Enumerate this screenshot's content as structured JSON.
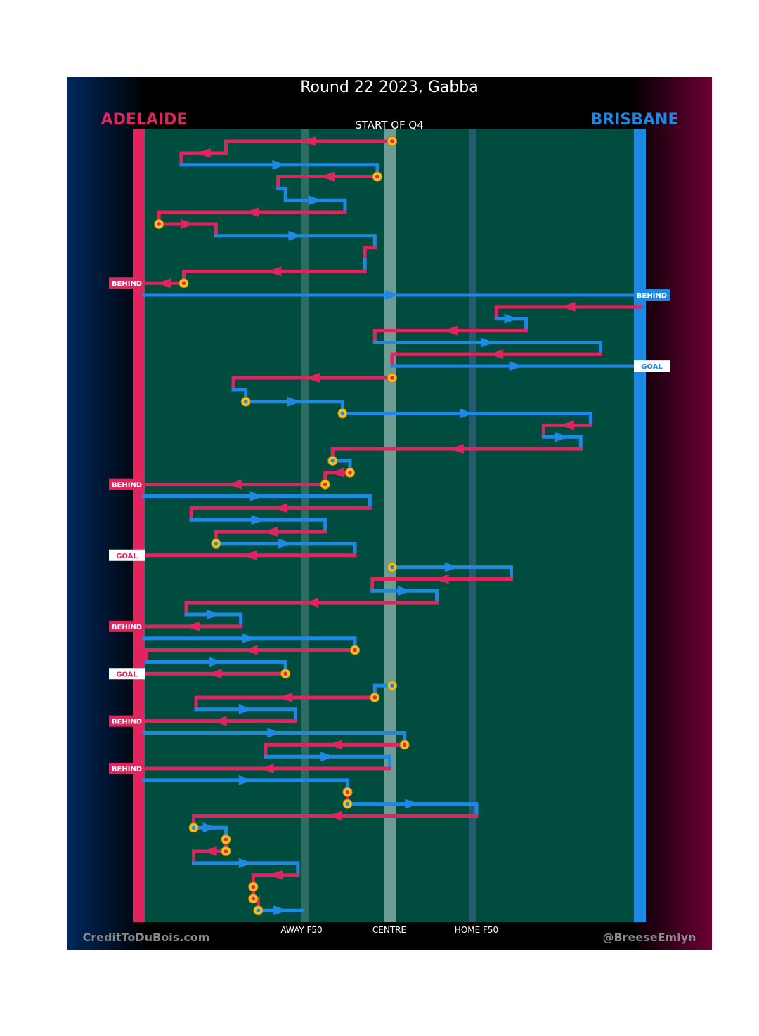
{
  "title": "Round 22 2023, Gabba",
  "subtitle": "START OF Q4",
  "teams": {
    "away": {
      "name": "ADELAIDE",
      "color": "#e0245e"
    },
    "home": {
      "name": "BRISBANE",
      "color": "#1e88e5"
    }
  },
  "zone_labels": {
    "away_f50": "AWAY F50",
    "centre": "CENTRE",
    "home_f50": "HOME F50"
  },
  "footer": {
    "left": "CreditToDuBois.com",
    "right": "@BreeseEmlyn"
  },
  "colors": {
    "pitch": "#004d40",
    "frame": "#000000",
    "marker_fill": "#f4c21b"
  },
  "chart_data": {
    "type": "flow",
    "x_range": [
      0,
      100
    ],
    "x_ticks": [
      {
        "x": 32,
        "label": "AWAY F50"
      },
      {
        "x": 50,
        "label": "CENTRE"
      },
      {
        "x": 68,
        "label": "HOME F50"
      }
    ],
    "chains": [
      {
        "team": "away",
        "points": [
          [
            50,
            0
          ],
          [
            16.5,
            0
          ],
          [
            16.5,
            1
          ]
        ],
        "start_marker": true
      },
      {
        "team": "away",
        "points": [
          [
            16.5,
            1
          ],
          [
            7.5,
            1
          ],
          [
            7.5,
            2
          ]
        ]
      },
      {
        "team": "home",
        "points": [
          [
            7.5,
            2
          ],
          [
            47,
            2
          ],
          [
            47,
            3
          ]
        ]
      },
      {
        "team": "away",
        "points": [
          [
            47,
            3
          ],
          [
            27,
            3
          ],
          [
            27,
            4
          ]
        ],
        "start_marker": true
      },
      {
        "team": "home",
        "points": [
          [
            27,
            4
          ],
          [
            28.5,
            4
          ],
          [
            28.5,
            5
          ]
        ]
      },
      {
        "team": "home",
        "points": [
          [
            28.5,
            5
          ],
          [
            40.5,
            5
          ],
          [
            40.5,
            6
          ]
        ]
      },
      {
        "team": "away",
        "points": [
          [
            40.5,
            6
          ],
          [
            3,
            6
          ],
          [
            3,
            7
          ]
        ]
      },
      {
        "team": "away",
        "points": [
          [
            3,
            7
          ],
          [
            14.5,
            7
          ],
          [
            14.5,
            8
          ]
        ],
        "start_marker": true
      },
      {
        "team": "home",
        "points": [
          [
            14.5,
            8
          ],
          [
            46.5,
            8
          ],
          [
            46.5,
            9
          ]
        ]
      },
      {
        "team": "away",
        "points": [
          [
            46.5,
            9
          ],
          [
            44.5,
            9
          ],
          [
            44.5,
            10
          ]
        ]
      },
      {
        "team": "home",
        "points": [
          [
            44.5,
            10
          ],
          [
            44.5,
            11
          ]
        ]
      },
      {
        "team": "away",
        "points": [
          [
            44.5,
            11
          ],
          [
            8,
            11
          ],
          [
            8,
            12
          ]
        ]
      },
      {
        "team": "away",
        "points": [
          [
            8,
            12
          ],
          [
            0,
            12
          ]
        ],
        "start_marker": true,
        "result": "BEHIND"
      },
      {
        "team": "home",
        "points": [
          [
            0,
            13
          ],
          [
            100,
            13
          ]
        ],
        "result": "BEHIND"
      },
      {
        "team": "away",
        "points": [
          [
            100,
            14
          ],
          [
            71,
            14
          ],
          [
            71,
            15
          ]
        ]
      },
      {
        "team": "home",
        "points": [
          [
            71,
            15
          ],
          [
            77,
            15
          ],
          [
            77,
            16
          ]
        ]
      },
      {
        "team": "away",
        "points": [
          [
            77,
            16
          ],
          [
            46.5,
            16
          ],
          [
            46.5,
            17
          ]
        ]
      },
      {
        "team": "home",
        "points": [
          [
            46.5,
            17
          ],
          [
            92,
            17
          ],
          [
            92,
            18
          ]
        ]
      },
      {
        "team": "away",
        "points": [
          [
            92,
            18
          ],
          [
            50,
            18
          ],
          [
            50,
            19
          ]
        ]
      },
      {
        "team": "home",
        "points": [
          [
            50,
            19
          ],
          [
            100,
            19
          ]
        ],
        "result": "GOAL"
      },
      {
        "team": "away",
        "points": [
          [
            50,
            20
          ],
          [
            18,
            20
          ],
          [
            18,
            21
          ]
        ],
        "start_marker": true
      },
      {
        "team": "home",
        "points": [
          [
            18,
            21
          ],
          [
            20.5,
            21
          ],
          [
            20.5,
            22
          ]
        ]
      },
      {
        "team": "home",
        "points": [
          [
            20.5,
            22
          ],
          [
            40,
            22
          ],
          [
            40,
            23
          ]
        ],
        "start_marker": true
      },
      {
        "team": "home",
        "points": [
          [
            40,
            23
          ],
          [
            90,
            23
          ],
          [
            90,
            24
          ]
        ],
        "start_marker": true
      },
      {
        "team": "away",
        "points": [
          [
            90,
            24
          ],
          [
            80.5,
            24
          ],
          [
            80.5,
            25
          ]
        ]
      },
      {
        "team": "home",
        "points": [
          [
            80.5,
            25
          ],
          [
            88,
            25
          ],
          [
            88,
            26
          ]
        ]
      },
      {
        "team": "away",
        "points": [
          [
            88,
            26
          ],
          [
            38,
            26
          ],
          [
            38,
            27
          ]
        ]
      },
      {
        "team": "home",
        "points": [
          [
            38,
            27
          ],
          [
            41.5,
            27
          ],
          [
            41.5,
            28
          ]
        ],
        "start_marker": true
      },
      {
        "team": "away",
        "points": [
          [
            41.5,
            28
          ],
          [
            36.5,
            28
          ],
          [
            36.5,
            29
          ]
        ],
        "start_marker": true
      },
      {
        "team": "away",
        "points": [
          [
            36.5,
            29
          ],
          [
            0,
            29
          ]
        ],
        "start_marker": true,
        "result": "BEHIND"
      },
      {
        "team": "home",
        "points": [
          [
            0,
            30
          ],
          [
            45.5,
            30
          ],
          [
            45.5,
            31
          ]
        ]
      },
      {
        "team": "away",
        "points": [
          [
            45.5,
            31
          ],
          [
            9.5,
            31
          ],
          [
            9.5,
            32
          ]
        ]
      },
      {
        "team": "home",
        "points": [
          [
            9.5,
            32
          ],
          [
            36.5,
            32
          ],
          [
            36.5,
            33
          ]
        ]
      },
      {
        "team": "away",
        "points": [
          [
            36.5,
            33
          ],
          [
            14.5,
            33
          ],
          [
            14.5,
            34
          ]
        ]
      },
      {
        "team": "home",
        "points": [
          [
            14.5,
            34
          ],
          [
            42.5,
            34
          ],
          [
            42.5,
            35
          ]
        ],
        "start_marker": true
      },
      {
        "team": "away",
        "points": [
          [
            42.5,
            35
          ],
          [
            0,
            35
          ]
        ],
        "result": "GOAL"
      },
      {
        "team": "home",
        "points": [
          [
            50,
            36
          ],
          [
            74,
            36
          ],
          [
            74,
            37
          ]
        ],
        "start_marker": true
      },
      {
        "team": "away",
        "points": [
          [
            74,
            37
          ],
          [
            46,
            37
          ],
          [
            46,
            38
          ]
        ]
      },
      {
        "team": "home",
        "points": [
          [
            46,
            38
          ],
          [
            59,
            38
          ],
          [
            59,
            39
          ]
        ]
      },
      {
        "team": "away",
        "points": [
          [
            59,
            39
          ],
          [
            8.5,
            39
          ],
          [
            8.5,
            40
          ]
        ]
      },
      {
        "team": "home",
        "points": [
          [
            8.5,
            40
          ],
          [
            19.5,
            40
          ],
          [
            19.5,
            41
          ]
        ]
      },
      {
        "team": "away",
        "points": [
          [
            19.5,
            41
          ],
          [
            0,
            41
          ]
        ],
        "result": "BEHIND"
      },
      {
        "team": "home",
        "points": [
          [
            0,
            42
          ],
          [
            42.5,
            42
          ],
          [
            42.5,
            43
          ]
        ]
      },
      {
        "team": "away",
        "points": [
          [
            42.5,
            43
          ],
          [
            0.5,
            43
          ],
          [
            0.5,
            44
          ]
        ],
        "start_marker": true
      },
      {
        "team": "home",
        "points": [
          [
            0.5,
            44
          ],
          [
            28.5,
            44
          ],
          [
            28.5,
            45
          ]
        ]
      },
      {
        "team": "away",
        "points": [
          [
            28.5,
            45
          ],
          [
            0,
            45
          ]
        ],
        "start_marker": true,
        "result": "GOAL"
      },
      {
        "team": "home",
        "points": [
          [
            50,
            46
          ],
          [
            46.5,
            46
          ],
          [
            46.5,
            47
          ]
        ],
        "start_marker": true
      },
      {
        "team": "away",
        "points": [
          [
            46.5,
            47
          ],
          [
            10.5,
            47
          ],
          [
            10.5,
            48
          ]
        ],
        "start_marker": true
      },
      {
        "team": "home",
        "points": [
          [
            10.5,
            48
          ],
          [
            30.5,
            48
          ],
          [
            30.5,
            49
          ]
        ]
      },
      {
        "team": "away",
        "points": [
          [
            30.5,
            49
          ],
          [
            0,
            49
          ]
        ],
        "result": "BEHIND"
      },
      {
        "team": "home",
        "points": [
          [
            0,
            50
          ],
          [
            52.5,
            50
          ],
          [
            52.5,
            51
          ]
        ]
      },
      {
        "team": "away",
        "points": [
          [
            52.5,
            51
          ],
          [
            24.5,
            51
          ],
          [
            24.5,
            52
          ]
        ],
        "start_marker": true
      },
      {
        "team": "home",
        "points": [
          [
            24.5,
            52
          ],
          [
            49.5,
            52
          ],
          [
            49.5,
            53
          ]
        ]
      },
      {
        "team": "away",
        "points": [
          [
            49.5,
            53
          ],
          [
            0,
            53
          ]
        ],
        "result": "BEHIND"
      },
      {
        "team": "home",
        "points": [
          [
            0,
            54
          ],
          [
            41,
            54
          ],
          [
            41,
            55
          ]
        ]
      },
      {
        "team": "away",
        "points": [
          [
            41,
            55
          ],
          [
            41,
            56
          ]
        ],
        "start_marker": true
      },
      {
        "team": "home",
        "points": [
          [
            41,
            56
          ],
          [
            67,
            56
          ],
          [
            67,
            57
          ]
        ],
        "start_marker": true
      },
      {
        "team": "away",
        "points": [
          [
            67,
            57
          ],
          [
            10,
            57
          ],
          [
            10,
            58
          ]
        ]
      },
      {
        "team": "home",
        "points": [
          [
            10,
            58
          ],
          [
            16.5,
            58
          ],
          [
            16.5,
            59
          ]
        ],
        "start_marker": true
      },
      {
        "team": "away",
        "points": [
          [
            16.5,
            59
          ],
          [
            16.5,
            60
          ]
        ],
        "start_marker": true
      },
      {
        "team": "away",
        "points": [
          [
            16.5,
            60
          ],
          [
            10,
            60
          ],
          [
            10,
            61
          ]
        ],
        "start_marker": true
      },
      {
        "team": "home",
        "points": [
          [
            10,
            61
          ],
          [
            31,
            61
          ],
          [
            31,
            62
          ]
        ]
      },
      {
        "team": "away",
        "points": [
          [
            31,
            62
          ],
          [
            22,
            62
          ],
          [
            22,
            63
          ]
        ]
      },
      {
        "team": "away",
        "points": [
          [
            22,
            63
          ],
          [
            22,
            64
          ]
        ],
        "start_marker": true
      },
      {
        "team": "away",
        "points": [
          [
            22,
            64
          ],
          [
            23,
            64
          ],
          [
            23,
            65
          ]
        ],
        "start_marker": true
      },
      {
        "team": "home",
        "points": [
          [
            23,
            65
          ],
          [
            32,
            65
          ]
        ],
        "start_marker": true
      }
    ]
  }
}
